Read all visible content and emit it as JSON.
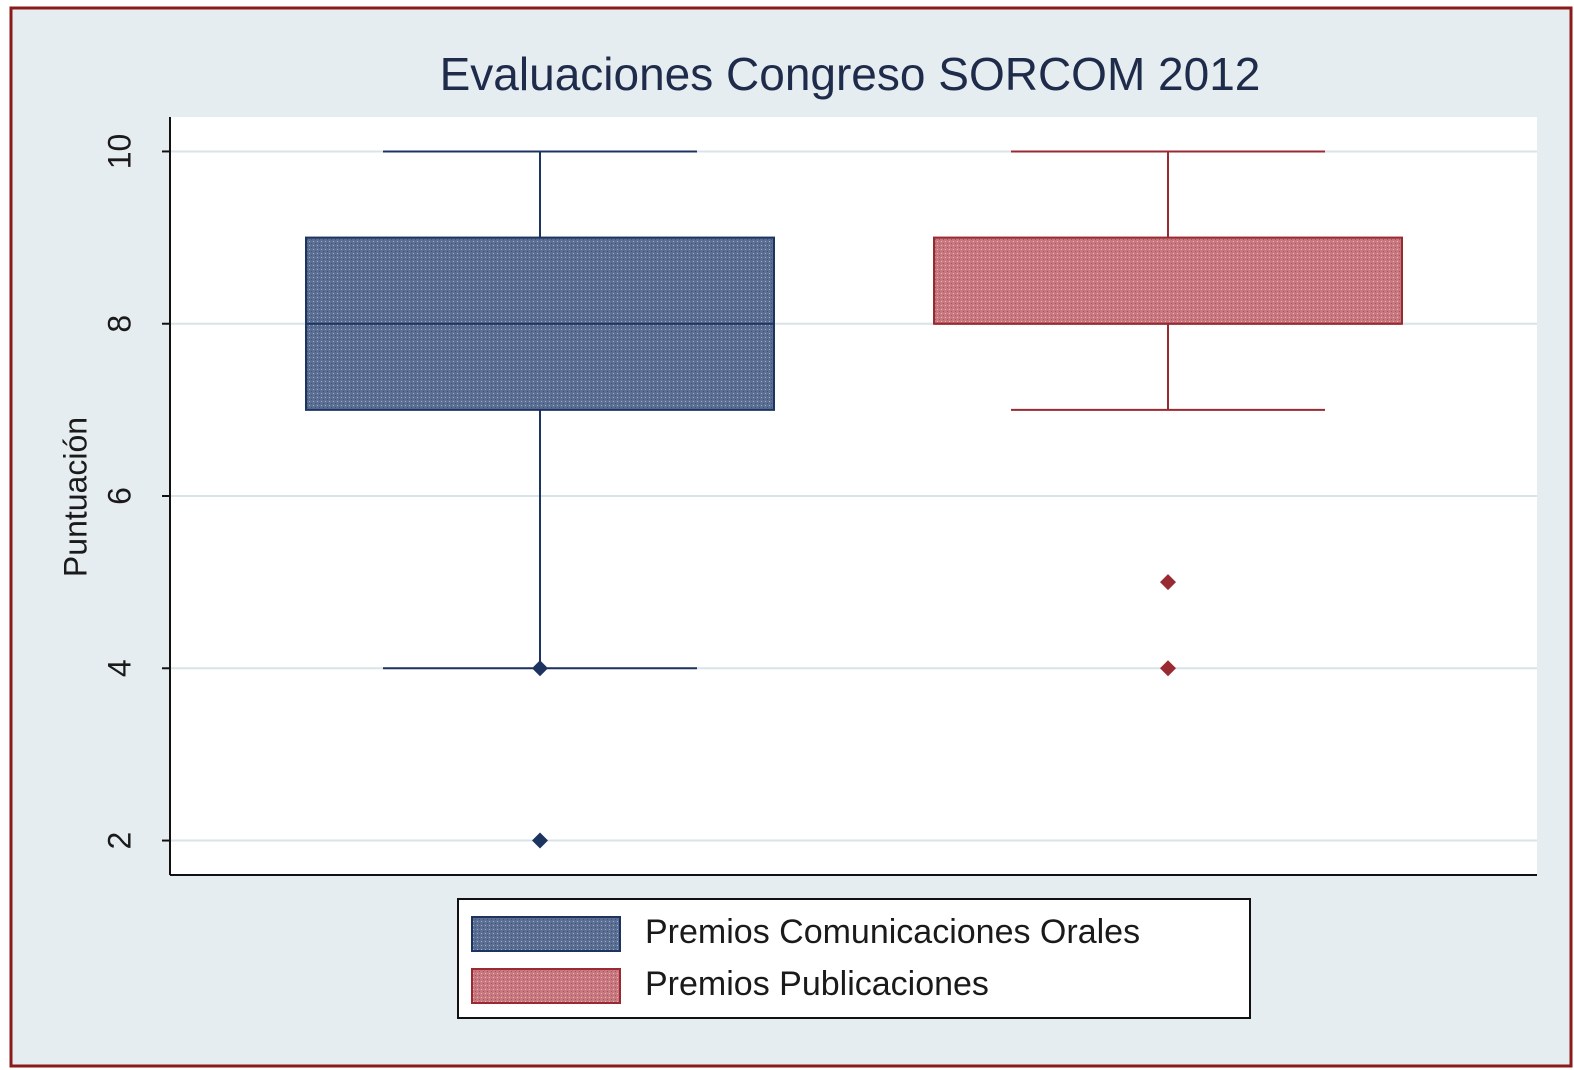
{
  "chart_data": {
    "type": "box",
    "title": "Evaluaciones Congreso SORCOM 2012",
    "y_label": "Puntuación",
    "ylim": [
      1.6,
      10.4
    ],
    "yticks": [
      2,
      4,
      6,
      8,
      10
    ],
    "grid": true,
    "legend": "bottom",
    "series": [
      {
        "name": "Premios Comunicaciones Orales",
        "color": "#5b6f95",
        "whisker_low": 4,
        "q1": 7,
        "median": 8,
        "q3": 9,
        "whisker_high": 10,
        "outliers": [
          4,
          2
        ]
      },
      {
        "name": "Premios Publicaciones",
        "color": "#c8787e",
        "whisker_low": 7,
        "q1": 8,
        "median": 8,
        "q3": 9,
        "whisker_high": 10,
        "outliers": [
          5,
          4
        ]
      }
    ]
  }
}
